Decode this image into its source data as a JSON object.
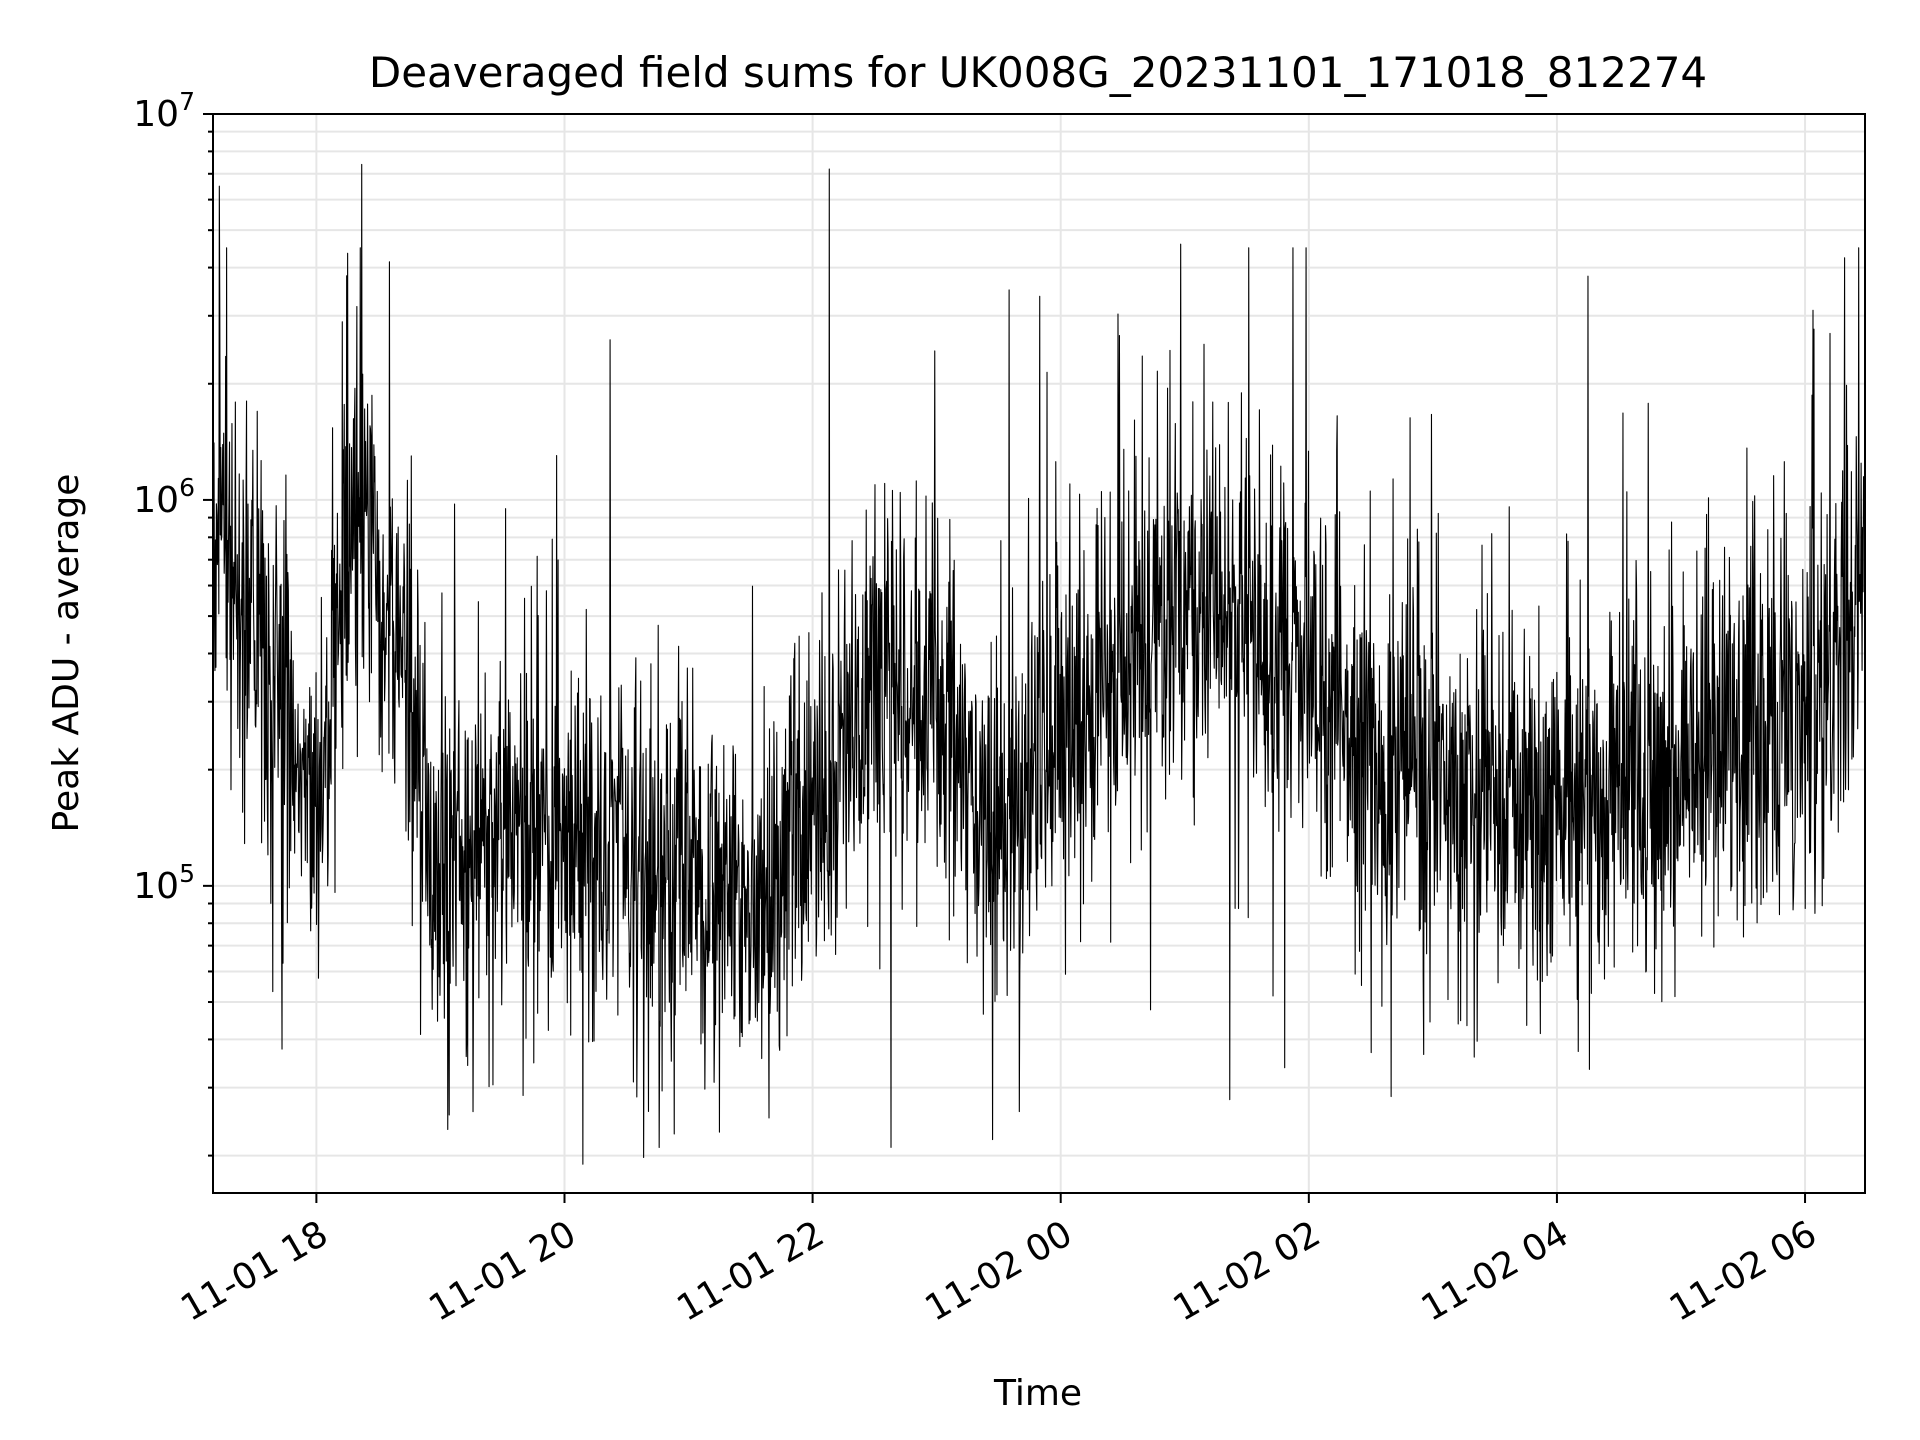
{
  "chart_data": {
    "type": "line",
    "title": "Deaveraged field sums for UK008G_20231101_171018_812274",
    "xlabel": "Time",
    "ylabel": "Peak ADU - average",
    "yscale": "log",
    "ylim": [
      16000,
      10000000
    ],
    "xlim": [
      "2023-11-01 17:10",
      "2023-11-02 06:29"
    ],
    "grid": true,
    "line_color": "#000000",
    "grid_color": "#e6e6e6",
    "x_ticks": [
      {
        "t": "2023-11-01 18:00",
        "label": "11-01 18"
      },
      {
        "t": "2023-11-01 20:00",
        "label": "11-01 20"
      },
      {
        "t": "2023-11-01 22:00",
        "label": "11-01 22"
      },
      {
        "t": "2023-11-02 00:00",
        "label": "11-02 00"
      },
      {
        "t": "2023-11-02 02:00",
        "label": "11-02 02"
      },
      {
        "t": "2023-11-02 04:00",
        "label": "11-02 04"
      },
      {
        "t": "2023-11-02 06:00",
        "label": "11-02 06"
      }
    ],
    "y_ticks": [
      {
        "value": 100000,
        "base": "10",
        "exp": "5"
      },
      {
        "value": 1000000,
        "base": "10",
        "exp": "6"
      },
      {
        "value": 10000000,
        "base": "10",
        "exp": "7"
      }
    ],
    "series": [
      {
        "values_note": "approximate low-envelope baseline (values in ADU) read every ~30 min; the plotted series is dense noisy fluctuation around these levels",
        "x": [
          "2023-11-01 17:10",
          "2023-11-01 17:30",
          "2023-11-01 18:00",
          "2023-11-01 18:20",
          "2023-11-01 18:30",
          "2023-11-01 19:00",
          "2023-11-01 19:30",
          "2023-11-01 20:00",
          "2023-11-01 20:30",
          "2023-11-01 21:00",
          "2023-11-01 21:30",
          "2023-11-01 22:00",
          "2023-11-01 22:30",
          "2023-11-01 23:00",
          "2023-11-01 23:30",
          "2023-11-02 00:00",
          "2023-11-02 00:30",
          "2023-11-02 01:00",
          "2023-11-02 01:30",
          "2023-11-02 02:00",
          "2023-11-02 02:30",
          "2023-11-02 03:00",
          "2023-11-02 03:30",
          "2023-11-02 04:00",
          "2023-11-02 04:30",
          "2023-11-02 05:00",
          "2023-11-02 05:30",
          "2023-11-02 06:00",
          "2023-11-02 06:29"
        ],
        "y": [
          900000,
          500000,
          150000,
          900000,
          700000,
          110000,
          150000,
          130000,
          120000,
          110000,
          80000,
          150000,
          350000,
          300000,
          120000,
          250000,
          350000,
          600000,
          450000,
          400000,
          200000,
          180000,
          170000,
          160000,
          170000,
          200000,
          250000,
          300000,
          500000
        ],
        "spikes": [
          {
            "t": "2023-11-01 17:13",
            "y": 6500000
          },
          {
            "t": "2023-11-01 18:22",
            "y": 7400000
          },
          {
            "t": "2023-11-01 20:22",
            "y": 2600000
          },
          {
            "t": "2023-11-01 22:08",
            "y": 7200000
          },
          {
            "t": "2023-11-01 23:35",
            "y": 3500000
          },
          {
            "t": "2023-11-02 00:58",
            "y": 4600000
          },
          {
            "t": "2023-11-02 04:15",
            "y": 3800000
          },
          {
            "t": "2023-11-02 06:12",
            "y": 2700000
          }
        ],
        "dips": [
          {
            "t": "2023-11-01 21:15",
            "y": 23000
          },
          {
            "t": "2023-11-01 22:38",
            "y": 21000
          },
          {
            "t": "2023-11-01 23:27",
            "y": 22000
          },
          {
            "t": "2023-11-01 23:40",
            "y": 26000
          },
          {
            "t": "2023-11-02 03:20",
            "y": 36000
          }
        ]
      }
    ]
  }
}
